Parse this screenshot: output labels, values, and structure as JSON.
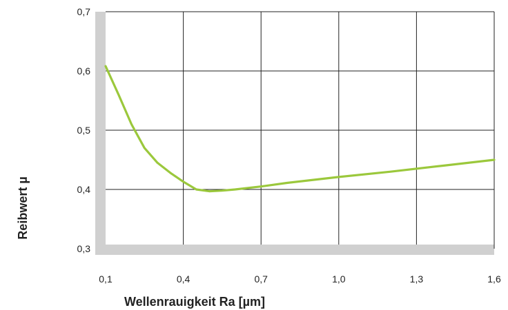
{
  "chart_data": {
    "type": "line",
    "title": "",
    "xlabel": "Wellenrauigkeit Ra [µm]",
    "ylabel": "Reibwert µ",
    "xlim": [
      0.1,
      1.6
    ],
    "ylim": [
      0.3,
      0.7
    ],
    "x_ticks": [
      "0,1",
      "0,4",
      "0,7",
      "1,0",
      "1,3",
      "1,6"
    ],
    "x_tick_values": [
      0.1,
      0.4,
      0.7,
      1.0,
      1.3,
      1.6
    ],
    "y_ticks": [
      "0,3",
      "0,4",
      "0,5",
      "0,6",
      "0,7"
    ],
    "y_tick_values": [
      0.3,
      0.4,
      0.5,
      0.6,
      0.7
    ],
    "grid": true,
    "colors": {
      "line": "#9bc83c",
      "axis_band": "#d0d0d0",
      "grid": "#222222"
    },
    "series": [
      {
        "x": [
          0.1,
          0.15,
          0.2,
          0.25,
          0.3,
          0.35,
          0.4,
          0.45,
          0.5,
          0.55,
          0.6,
          0.7,
          0.8,
          1.0,
          1.2,
          1.4,
          1.6
        ],
        "y": [
          0.608,
          0.56,
          0.51,
          0.47,
          0.445,
          0.428,
          0.413,
          0.4,
          0.397,
          0.398,
          0.4,
          0.405,
          0.411,
          0.421,
          0.43,
          0.44,
          0.45
        ]
      }
    ]
  }
}
